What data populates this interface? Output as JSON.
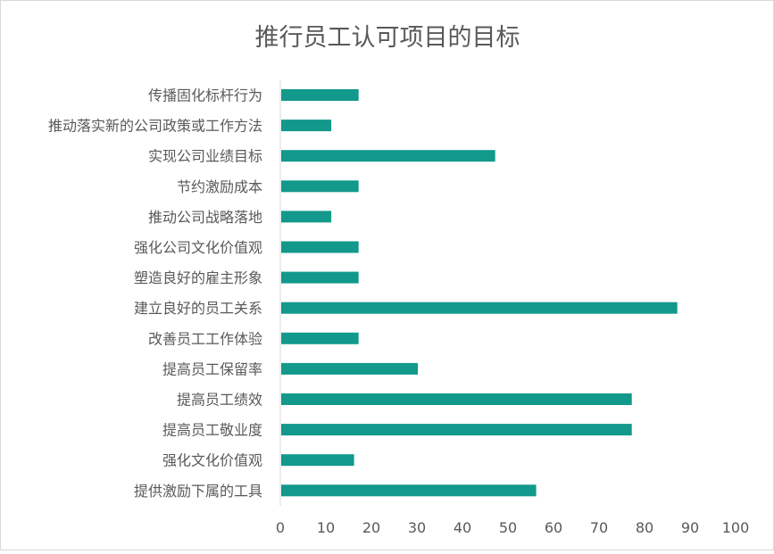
{
  "chart_data": {
    "type": "bar",
    "orientation": "horizontal",
    "title": "推行员工认可项目的目标",
    "xlabel": "",
    "ylabel": "",
    "xlim": [
      0,
      100
    ],
    "xticks": [
      0,
      10,
      20,
      30,
      40,
      50,
      60,
      70,
      80,
      90,
      100
    ],
    "grid": false,
    "legend": "none",
    "bar_color": "#12998b",
    "categories": [
      "传播固化标杆行为",
      "推动落实新的公司政策或工作方法",
      "实现公司业绩目标",
      "节约激励成本",
      "推动公司战略落地",
      "强化公司文化价值观",
      "塑造良好的雇主形象",
      "建立良好的员工关系",
      "改善员工工作体验",
      "提高员工保留率",
      "提高员工绩效",
      "提高员工敬业度",
      "强化文化价值观",
      "提供激励下属的工具"
    ],
    "values": [
      17,
      11,
      47,
      17,
      11,
      17,
      17,
      87,
      17,
      30,
      77,
      77,
      16,
      56
    ]
  }
}
